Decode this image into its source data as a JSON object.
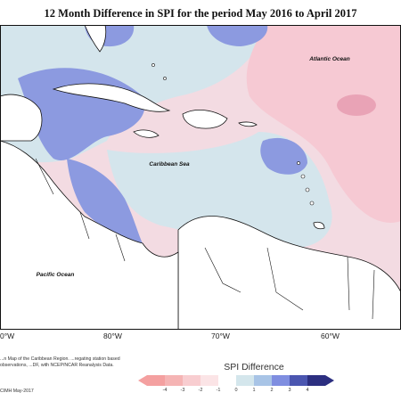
{
  "title": "12 Month Difference in SPI for the period May 2016 to April 2017",
  "map": {
    "labels": {
      "atlantic": "Atlantic Ocean",
      "caribbean": "Caribbean Sea",
      "pacific": "Pacific Ocean"
    },
    "lon_ticks": [
      "0°W",
      "80°W",
      "70°W",
      "60°W"
    ],
    "colors": {
      "ocean_light_pink": "#f8e0e6",
      "ocean_pink": "#f6c8d2",
      "dark_pink": "#eaa0b4",
      "light_blue": "#d0e2ea",
      "mid_blue": "#a9b8e4",
      "blue": "#7f8fdc",
      "land": "#ffffff"
    }
  },
  "legend": {
    "title": "SPI Difference",
    "ticks": [
      "-4",
      "-3",
      "-2",
      "-1",
      "0",
      "1",
      "2",
      "3",
      "4"
    ],
    "colors": [
      "#f4a0a0",
      "#f5b4b4",
      "#f8cdd0",
      "#fbe4e6",
      "#ffffff",
      "#d4e6ec",
      "#a8c4e6",
      "#7f8ee0",
      "#4b56b0",
      "#2c2f80"
    ]
  },
  "credit": {
    "text": "...n Map of the Caribbean Region. ...regating station based observations, ...DF, with NCEP/NCAR Reanalysis Data.",
    "date": "CIMH May-2017"
  }
}
